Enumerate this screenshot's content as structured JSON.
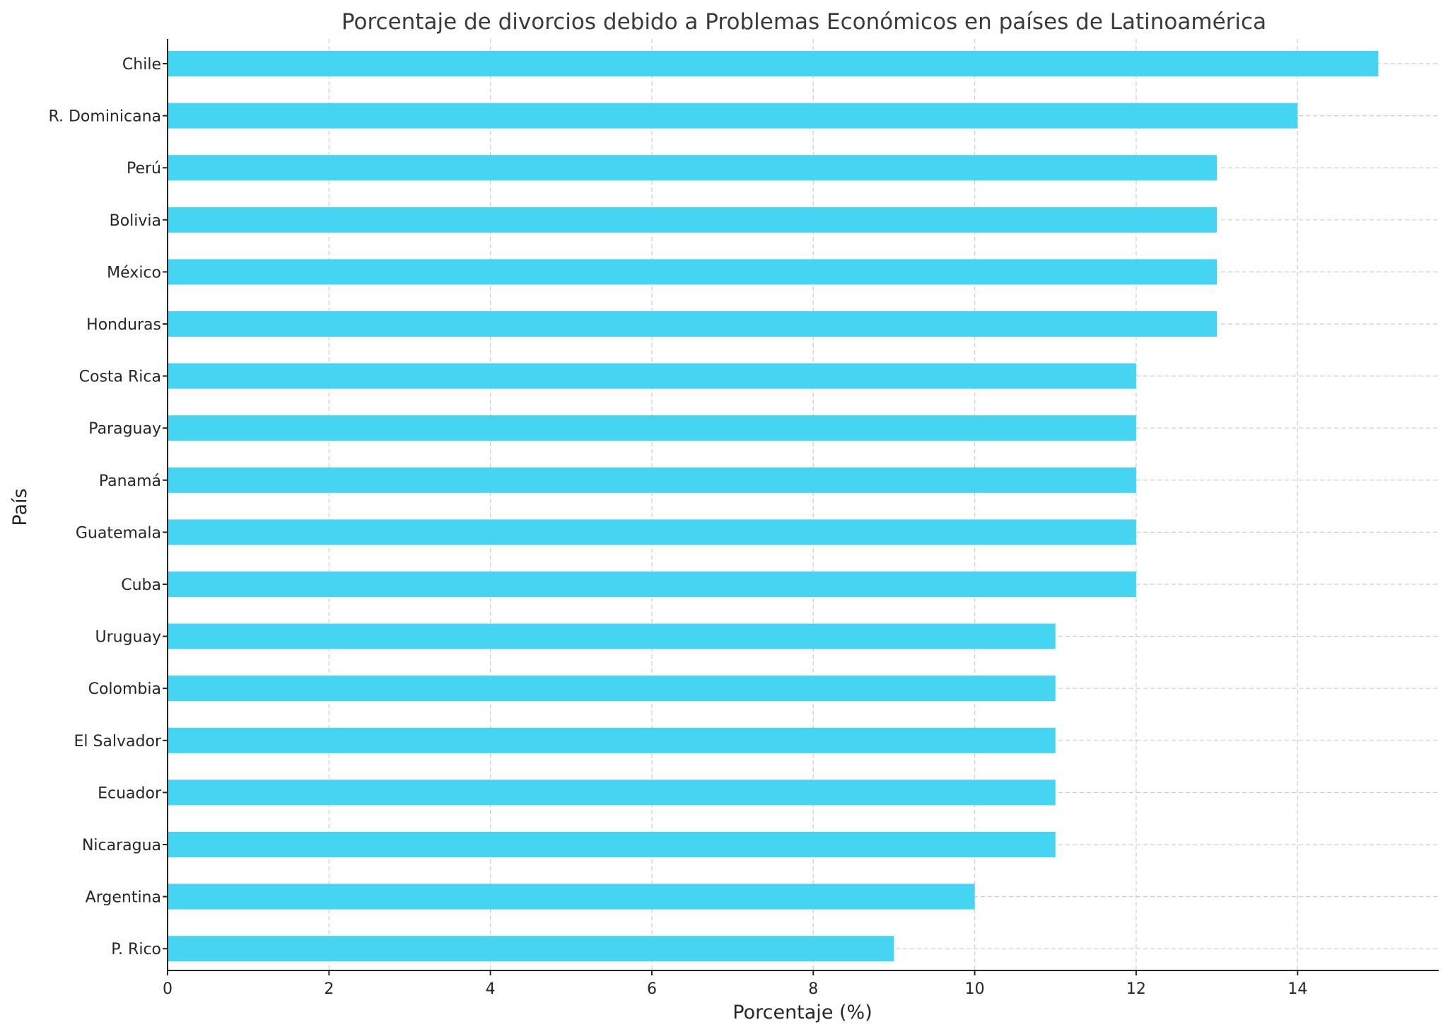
{
  "chart_data": {
    "type": "bar",
    "orientation": "horizontal",
    "title": "Porcentaje de divorcios debido a Problemas Económicos en países de Latinoamérica",
    "xlabel": "Porcentaje (%)",
    "ylabel": "País",
    "categories": [
      "Chile",
      "R. Dominicana",
      "Perú",
      "Bolivia",
      "México",
      "Honduras",
      "Costa Rica",
      "Paraguay",
      "Panamá",
      "Guatemala",
      "Cuba",
      "Uruguay",
      "Colombia",
      "El Salvador",
      "Ecuador",
      "Nicaragua",
      "Argentina",
      "P. Rico"
    ],
    "values": [
      15,
      14,
      13,
      13,
      13,
      13,
      12,
      12,
      12,
      12,
      12,
      11,
      11,
      11,
      11,
      11,
      10,
      9
    ],
    "xlim": [
      0,
      15.75
    ],
    "xticks": [
      0,
      2,
      4,
      6,
      8,
      10,
      12,
      14
    ],
    "grid": true,
    "bar_color": "#45d4f2"
  }
}
